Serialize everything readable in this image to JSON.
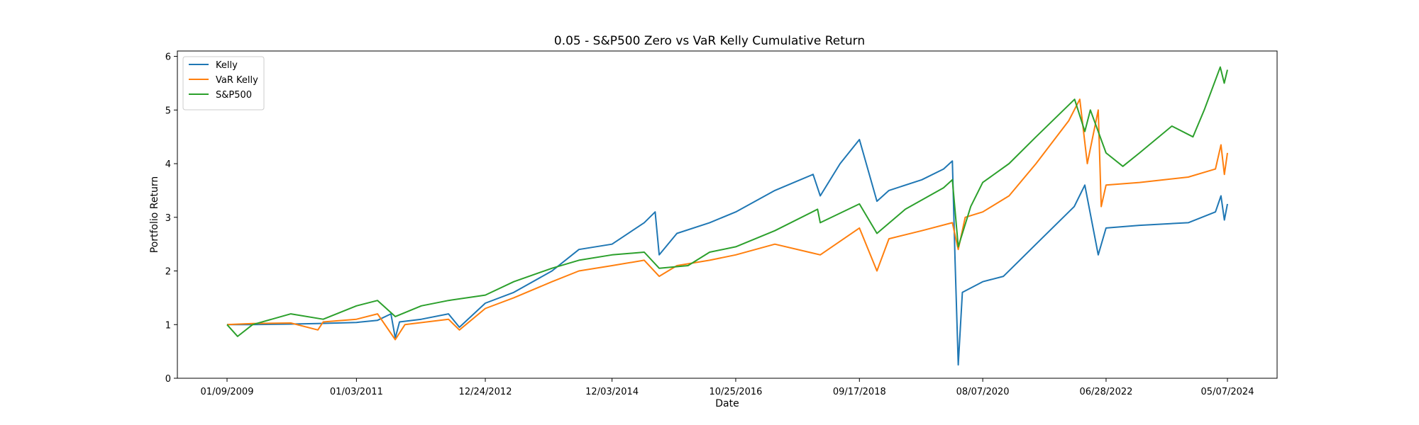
{
  "chart_data": {
    "type": "line",
    "title": "0.05 - S&P500 Zero vs VaR Kelly Cumulative Return",
    "xlabel": "Date",
    "ylabel": "Portfolio Return",
    "x_ticks": [
      "01/09/2009",
      "01/03/2011",
      "12/24/2012",
      "12/03/2014",
      "10/25/2016",
      "09/17/2018",
      "08/07/2020",
      "06/28/2022",
      "05/07/2024"
    ],
    "ylim": [
      0,
      6.1
    ],
    "y_ticks": [
      0,
      1,
      2,
      3,
      4,
      5,
      6
    ],
    "grid": false,
    "legend_position": "upper-left",
    "series": [
      {
        "name": "Kelly",
        "color": "#1f77b4",
        "points": [
          [
            "01/09/2009",
            1.0
          ],
          [
            "06/01/2009",
            1.0
          ],
          [
            "01/01/2010",
            1.01
          ],
          [
            "06/01/2010",
            1.02
          ],
          [
            "01/03/2011",
            1.04
          ],
          [
            "05/01/2011",
            1.08
          ],
          [
            "07/15/2011",
            1.2
          ],
          [
            "08/08/2011",
            0.75
          ],
          [
            "09/01/2011",
            1.05
          ],
          [
            "01/01/2012",
            1.1
          ],
          [
            "06/01/2012",
            1.2
          ],
          [
            "08/01/2012",
            0.95
          ],
          [
            "12/24/2012",
            1.4
          ],
          [
            "06/01/2013",
            1.6
          ],
          [
            "01/01/2014",
            2.0
          ],
          [
            "06/01/2014",
            2.4
          ],
          [
            "12/03/2014",
            2.5
          ],
          [
            "06/01/2015",
            2.9
          ],
          [
            "08/01/2015",
            3.1
          ],
          [
            "08/24/2015",
            2.3
          ],
          [
            "12/01/2015",
            2.7
          ],
          [
            "06/01/2016",
            2.9
          ],
          [
            "10/25/2016",
            3.1
          ],
          [
            "06/01/2017",
            3.5
          ],
          [
            "01/01/2018",
            3.8
          ],
          [
            "02/10/2018",
            3.4
          ],
          [
            "06/01/2018",
            4.0
          ],
          [
            "09/17/2018",
            4.45
          ],
          [
            "12/24/2018",
            3.3
          ],
          [
            "03/01/2019",
            3.5
          ],
          [
            "09/01/2019",
            3.7
          ],
          [
            "01/01/2020",
            3.9
          ],
          [
            "02/19/2020",
            4.05
          ],
          [
            "03/05/2020",
            2.2
          ],
          [
            "03/23/2020",
            0.25
          ],
          [
            "04/15/2020",
            1.6
          ],
          [
            "08/07/2020",
            1.8
          ],
          [
            "12/01/2020",
            1.9
          ],
          [
            "06/01/2021",
            2.5
          ],
          [
            "01/01/2022",
            3.2
          ],
          [
            "03/01/2022",
            3.6
          ],
          [
            "05/15/2022",
            2.3
          ],
          [
            "06/28/2022",
            2.8
          ],
          [
            "01/01/2023",
            2.85
          ],
          [
            "10/01/2023",
            2.9
          ],
          [
            "03/01/2024",
            3.1
          ],
          [
            "04/01/2024",
            3.4
          ],
          [
            "04/20/2024",
            2.95
          ],
          [
            "05/07/2024",
            3.25
          ]
        ]
      },
      {
        "name": "VaR Kelly",
        "color": "#ff7f0e",
        "points": [
          [
            "01/09/2009",
            1.0
          ],
          [
            "06/01/2009",
            1.02
          ],
          [
            "01/01/2010",
            1.03
          ],
          [
            "06/01/2010",
            0.9
          ],
          [
            "07/01/2010",
            1.05
          ],
          [
            "01/03/2011",
            1.1
          ],
          [
            "05/01/2011",
            1.2
          ],
          [
            "08/08/2011",
            0.72
          ],
          [
            "10/01/2011",
            1.0
          ],
          [
            "06/01/2012",
            1.1
          ],
          [
            "08/01/2012",
            0.9
          ],
          [
            "12/24/2012",
            1.3
          ],
          [
            "06/01/2013",
            1.5
          ],
          [
            "01/01/2014",
            1.8
          ],
          [
            "06/01/2014",
            2.0
          ],
          [
            "12/03/2014",
            2.1
          ],
          [
            "06/01/2015",
            2.2
          ],
          [
            "08/24/2015",
            1.9
          ],
          [
            "12/01/2015",
            2.1
          ],
          [
            "06/01/2016",
            2.2
          ],
          [
            "10/25/2016",
            2.3
          ],
          [
            "06/01/2017",
            2.5
          ],
          [
            "02/10/2018",
            2.3
          ],
          [
            "09/17/2018",
            2.8
          ],
          [
            "12/24/2018",
            2.0
          ],
          [
            "03/01/2019",
            2.6
          ],
          [
            "09/01/2019",
            2.75
          ],
          [
            "02/19/2020",
            2.9
          ],
          [
            "03/23/2020",
            2.4
          ],
          [
            "05/01/2020",
            3.0
          ],
          [
            "08/07/2020",
            3.1
          ],
          [
            "01/01/2021",
            3.4
          ],
          [
            "06/01/2021",
            4.0
          ],
          [
            "12/01/2021",
            4.8
          ],
          [
            "02/01/2022",
            5.2
          ],
          [
            "03/15/2022",
            4.0
          ],
          [
            "05/15/2022",
            5.0
          ],
          [
            "06/01/2022",
            3.2
          ],
          [
            "06/28/2022",
            3.6
          ],
          [
            "01/01/2023",
            3.65
          ],
          [
            "10/01/2023",
            3.75
          ],
          [
            "03/01/2024",
            3.9
          ],
          [
            "04/01/2024",
            4.35
          ],
          [
            "04/20/2024",
            3.8
          ],
          [
            "05/07/2024",
            4.2
          ]
        ]
      },
      {
        "name": "S&P500",
        "color": "#2ca02c",
        "points": [
          [
            "01/09/2009",
            1.0
          ],
          [
            "03/09/2009",
            0.78
          ],
          [
            "06/01/2009",
            1.0
          ],
          [
            "01/01/2010",
            1.2
          ],
          [
            "07/01/2010",
            1.1
          ],
          [
            "01/03/2011",
            1.35
          ],
          [
            "05/01/2011",
            1.45
          ],
          [
            "08/08/2011",
            1.15
          ],
          [
            "01/01/2012",
            1.35
          ],
          [
            "06/01/2012",
            1.45
          ],
          [
            "12/24/2012",
            1.55
          ],
          [
            "06/01/2013",
            1.8
          ],
          [
            "01/01/2014",
            2.05
          ],
          [
            "06/01/2014",
            2.2
          ],
          [
            "12/03/2014",
            2.3
          ],
          [
            "06/01/2015",
            2.35
          ],
          [
            "08/24/2015",
            2.05
          ],
          [
            "02/01/2016",
            2.1
          ],
          [
            "06/01/2016",
            2.35
          ],
          [
            "10/25/2016",
            2.45
          ],
          [
            "06/01/2017",
            2.75
          ],
          [
            "01/26/2018",
            3.15
          ],
          [
            "02/10/2018",
            2.9
          ],
          [
            "09/17/2018",
            3.25
          ],
          [
            "12/24/2018",
            2.7
          ],
          [
            "06/01/2019",
            3.15
          ],
          [
            "01/01/2020",
            3.55
          ],
          [
            "02/19/2020",
            3.7
          ],
          [
            "03/23/2020",
            2.45
          ],
          [
            "06/01/2020",
            3.2
          ],
          [
            "08/07/2020",
            3.65
          ],
          [
            "01/01/2021",
            4.0
          ],
          [
            "06/01/2021",
            4.5
          ],
          [
            "01/03/2022",
            5.2
          ],
          [
            "03/01/2022",
            4.6
          ],
          [
            "04/01/2022",
            5.0
          ],
          [
            "06/28/2022",
            4.2
          ],
          [
            "09/30/2022",
            3.95
          ],
          [
            "01/01/2023",
            4.2
          ],
          [
            "07/01/2023",
            4.7
          ],
          [
            "10/27/2023",
            4.5
          ],
          [
            "12/29/2023",
            5.0
          ],
          [
            "03/28/2024",
            5.8
          ],
          [
            "04/19/2024",
            5.5
          ],
          [
            "05/07/2024",
            5.75
          ]
        ]
      }
    ]
  }
}
